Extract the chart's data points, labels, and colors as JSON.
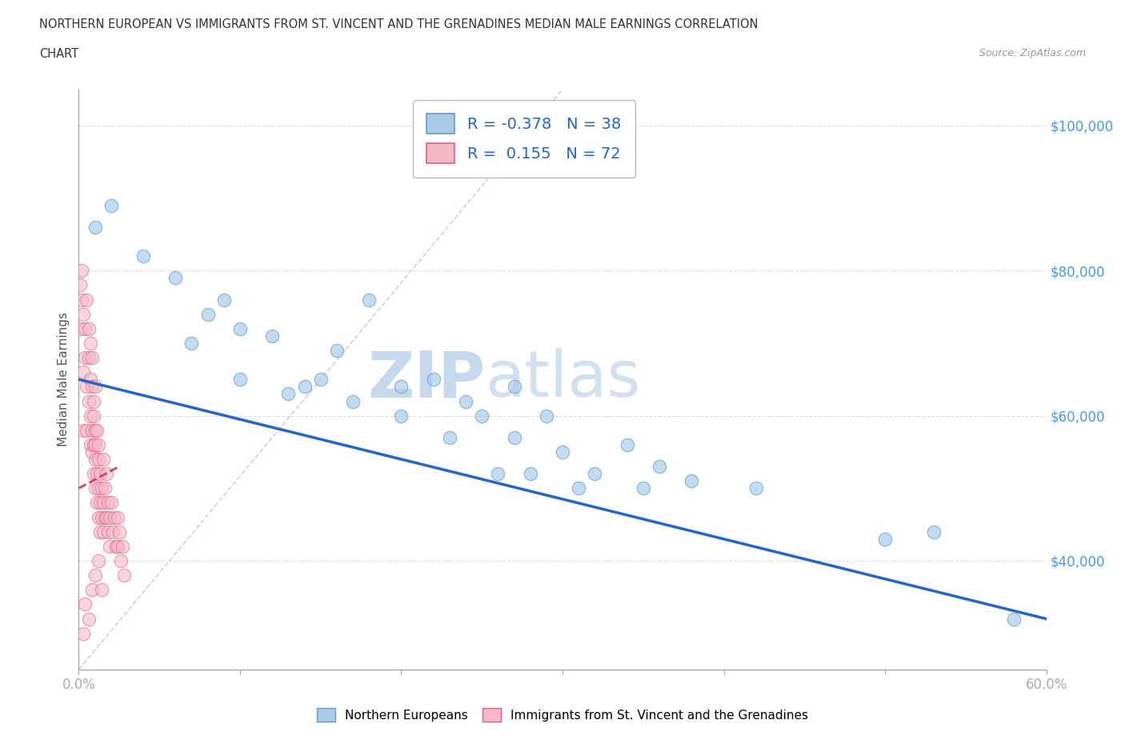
{
  "title_line1": "NORTHERN EUROPEAN VS IMMIGRANTS FROM ST. VINCENT AND THE GRENADINES MEDIAN MALE EARNINGS CORRELATION",
  "title_line2": "CHART",
  "source": "Source: ZipAtlas.com",
  "ylabel": "Median Male Earnings",
  "xlim": [
    0.0,
    0.6
  ],
  "ylim": [
    25000,
    105000
  ],
  "yticks": [
    40000,
    60000,
    80000,
    100000
  ],
  "ytick_labels": [
    "$40,000",
    "$60,000",
    "$80,000",
    "$100,000"
  ],
  "xtick_positions": [
    0.0,
    0.1,
    0.2,
    0.3,
    0.4,
    0.5,
    0.6
  ],
  "xtick_labels_shown": {
    "0.0": "0.0%",
    "0.6": "60.0%"
  },
  "blue_R": -0.378,
  "blue_N": 38,
  "pink_R": 0.155,
  "pink_N": 72,
  "blue_fill_color": "#a8cce8",
  "pink_fill_color": "#f4b8c8",
  "blue_edge_color": "#6699cc",
  "pink_edge_color": "#e06080",
  "blue_line_color": "#2266cc",
  "pink_line_color": "#cc4466",
  "diagonal_color": "#cccccc",
  "watermark_zip": "ZIP",
  "watermark_atlas": "atlas",
  "legend_text_color": "#2266cc",
  "ytick_color": "#4499ee",
  "xtick_color": "#4499ee",
  "blue_scatter_x": [
    0.01,
    0.02,
    0.04,
    0.06,
    0.07,
    0.08,
    0.09,
    0.1,
    0.1,
    0.12,
    0.13,
    0.14,
    0.15,
    0.16,
    0.17,
    0.18,
    0.2,
    0.2,
    0.22,
    0.23,
    0.24,
    0.25,
    0.26,
    0.27,
    0.27,
    0.28,
    0.29,
    0.3,
    0.31,
    0.32,
    0.34,
    0.35,
    0.36,
    0.38,
    0.42,
    0.5,
    0.53,
    0.58
  ],
  "blue_scatter_y": [
    86000,
    89000,
    82000,
    79000,
    70000,
    74000,
    76000,
    65000,
    72000,
    71000,
    63000,
    64000,
    65000,
    69000,
    62000,
    76000,
    64000,
    60000,
    65000,
    57000,
    62000,
    60000,
    52000,
    57000,
    64000,
    52000,
    60000,
    55000,
    50000,
    52000,
    56000,
    50000,
    53000,
    51000,
    50000,
    43000,
    44000,
    32000
  ],
  "pink_scatter_x": [
    0.001,
    0.001,
    0.002,
    0.002,
    0.003,
    0.003,
    0.003,
    0.004,
    0.004,
    0.005,
    0.005,
    0.005,
    0.006,
    0.006,
    0.006,
    0.007,
    0.007,
    0.007,
    0.007,
    0.008,
    0.008,
    0.008,
    0.008,
    0.009,
    0.009,
    0.009,
    0.009,
    0.01,
    0.01,
    0.01,
    0.01,
    0.01,
    0.011,
    0.011,
    0.011,
    0.012,
    0.012,
    0.012,
    0.012,
    0.013,
    0.013,
    0.013,
    0.014,
    0.014,
    0.015,
    0.015,
    0.015,
    0.016,
    0.016,
    0.017,
    0.017,
    0.018,
    0.018,
    0.019,
    0.019,
    0.02,
    0.021,
    0.022,
    0.023,
    0.024,
    0.024,
    0.025,
    0.026,
    0.027,
    0.028,
    0.003,
    0.004,
    0.006,
    0.008,
    0.01,
    0.012,
    0.014
  ],
  "pink_scatter_y": [
    78000,
    72000,
    76000,
    80000,
    74000,
    66000,
    58000,
    72000,
    68000,
    76000,
    64000,
    58000,
    68000,
    62000,
    72000,
    65000,
    60000,
    56000,
    70000,
    64000,
    58000,
    55000,
    68000,
    62000,
    56000,
    52000,
    60000,
    64000,
    58000,
    54000,
    50000,
    56000,
    58000,
    52000,
    48000,
    54000,
    50000,
    56000,
    46000,
    52000,
    48000,
    44000,
    50000,
    46000,
    54000,
    48000,
    44000,
    50000,
    46000,
    52000,
    46000,
    48000,
    44000,
    46000,
    42000,
    48000,
    44000,
    46000,
    42000,
    46000,
    42000,
    44000,
    40000,
    42000,
    38000,
    30000,
    34000,
    32000,
    36000,
    38000,
    40000,
    36000
  ]
}
